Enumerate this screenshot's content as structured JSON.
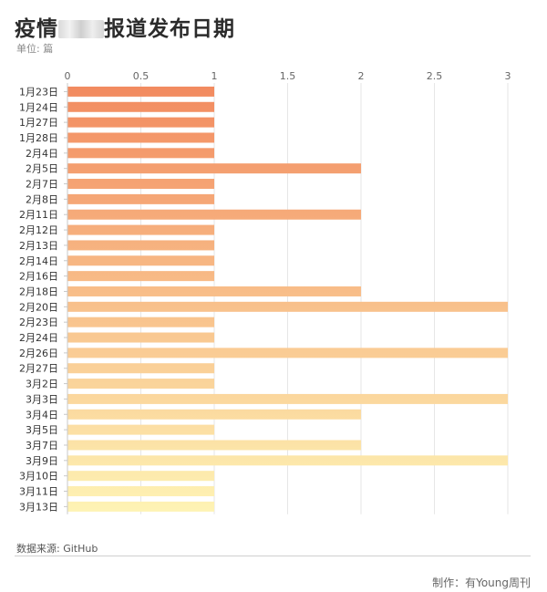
{
  "header": {
    "title_prefix": "疫情",
    "title_suffix": "报道发布日期",
    "unit": "单位: 篇"
  },
  "footer": {
    "source": "数据来源: GitHub",
    "credit": "制作：有Young周刊"
  },
  "colors": {
    "bar_start": "#F28A5F",
    "bar_end": "#FEF3B4",
    "grid": "#e6e6e6",
    "axis": "#c8c8c8"
  },
  "chart_data": {
    "type": "bar",
    "orientation": "horizontal",
    "categories": [
      "1月23日",
      "1月24日",
      "1月27日",
      "1月28日",
      "2月4日",
      "2月5日",
      "2月7日",
      "2月8日",
      "2月11日",
      "2月12日",
      "2月13日",
      "2月14日",
      "2月16日",
      "2月18日",
      "2月20日",
      "2月23日",
      "2月24日",
      "2月26日",
      "2月27日",
      "3月2日",
      "3月3日",
      "3月4日",
      "3月5日",
      "3月7日",
      "3月9日",
      "3月10日",
      "3月11日",
      "3月13日"
    ],
    "values": [
      1,
      1,
      1,
      1,
      1,
      2,
      1,
      1,
      2,
      1,
      1,
      1,
      1,
      2,
      3,
      1,
      1,
      3,
      1,
      1,
      3,
      2,
      1,
      2,
      3,
      1,
      1,
      1
    ],
    "x_ticks": [
      "0",
      "0.5",
      "1",
      "1.5",
      "2",
      "2.5",
      "3"
    ],
    "xlim": [
      0,
      3
    ],
    "grid": true
  }
}
